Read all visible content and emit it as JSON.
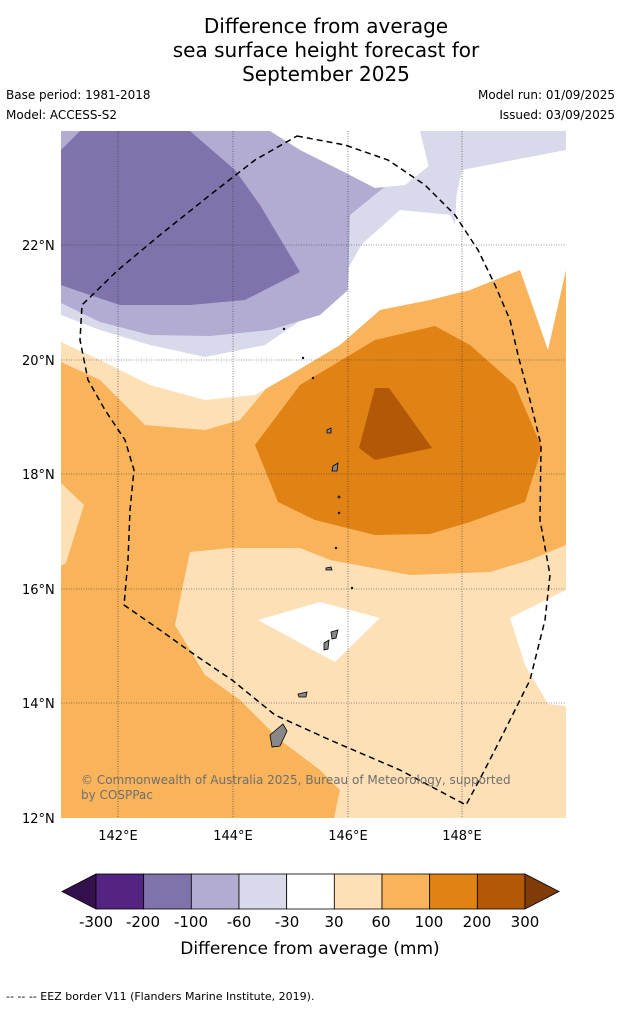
{
  "title_lines": [
    "Difference from average",
    "sea surface height forecast for",
    "September 2025"
  ],
  "base_period": "Base period: 1981-2018",
  "model": "Model: ACCESS-S2",
  "model_run": "Model run: 01/09/2025",
  "issued": "Issued: 03/09/2025",
  "lat_labels": [
    "22°N",
    "20°N",
    "18°N",
    "16°N",
    "14°N",
    "12°N"
  ],
  "lon_labels": [
    "142°E",
    "144°E",
    "146°E",
    "148°E"
  ],
  "copyright_lines": [
    "© Commonwealth of Australia 2025, Bureau of Meteorology, supported",
    "by COSPPac"
  ],
  "colorbar": {
    "title": "Difference from average (mm)",
    "tick_labels": [
      "-300",
      "-200",
      "-100",
      "-60",
      "-30",
      "30",
      "60",
      "100",
      "200",
      "300"
    ],
    "colors": [
      "#34104f",
      "#542483",
      "#8073ac",
      "#b2abd2",
      "#d8daeb",
      "#ffffff",
      "#fee0b6",
      "#f9b35b",
      "#e08214",
      "#b35806",
      "#7f3b08"
    ]
  },
  "footer": "--  --  -- EEZ border V11 (Flanders Marine Institute, 2019)."
}
